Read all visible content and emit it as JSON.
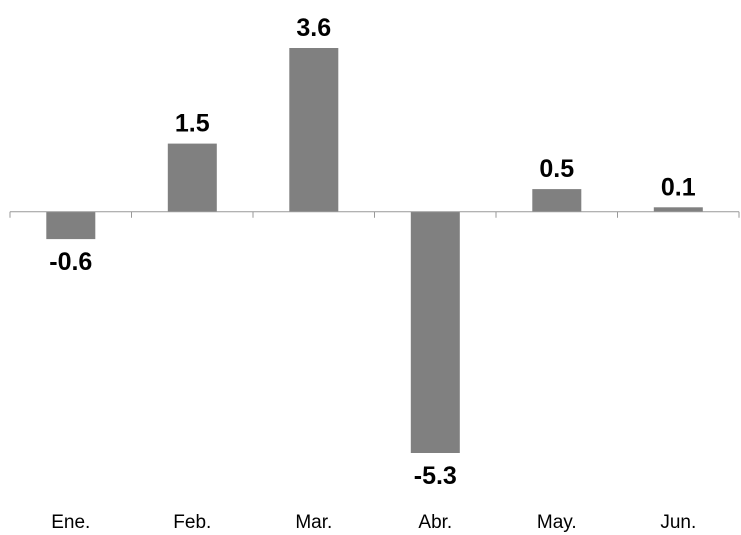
{
  "chart_data": {
    "type": "bar",
    "categories": [
      "Ene.",
      "Feb.",
      "Mar.",
      "Abr.",
      "May.",
      "Jun."
    ],
    "values": [
      -0.6,
      1.5,
      3.6,
      -5.3,
      0.5,
      0.1
    ],
    "data_labels": [
      "-0.6",
      "1.5",
      "3.6",
      "-5.3",
      "0.5",
      "0.1"
    ],
    "title": "",
    "xlabel": "",
    "ylabel": "",
    "ylim": [
      -5.3,
      3.6
    ],
    "grid": false,
    "legend": "none",
    "bar_color": "#808080",
    "axis_color": "#999999"
  }
}
